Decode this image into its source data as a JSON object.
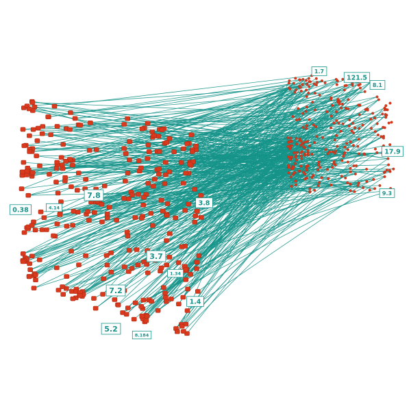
{
  "labels": [
    {
      "text": "1.7",
      "size": "s"
    },
    {
      "text": "121.5",
      "size": "m"
    },
    {
      "text": "8.1",
      "size": "s"
    },
    {
      "text": "17.9",
      "size": "m"
    },
    {
      "text": "9.3",
      "size": "s"
    },
    {
      "text": "7.8",
      "size": "l"
    },
    {
      "text": "0.38",
      "size": "m"
    },
    {
      "text": "4.14",
      "size": "xs"
    },
    {
      "text": "3.7",
      "size": "l"
    },
    {
      "text": "1.34",
      "size": "xs"
    },
    {
      "text": "7.2",
      "size": "l"
    },
    {
      "text": "1.4",
      "size": "m"
    },
    {
      "text": "5.2",
      "size": "l"
    },
    {
      "text": "8.184",
      "size": "xs"
    },
    {
      "text": "3.8",
      "size": "m"
    }
  ],
  "colors": {
    "edge": "#15938a",
    "node": "#d93a1e",
    "label": "#15938a"
  }
}
